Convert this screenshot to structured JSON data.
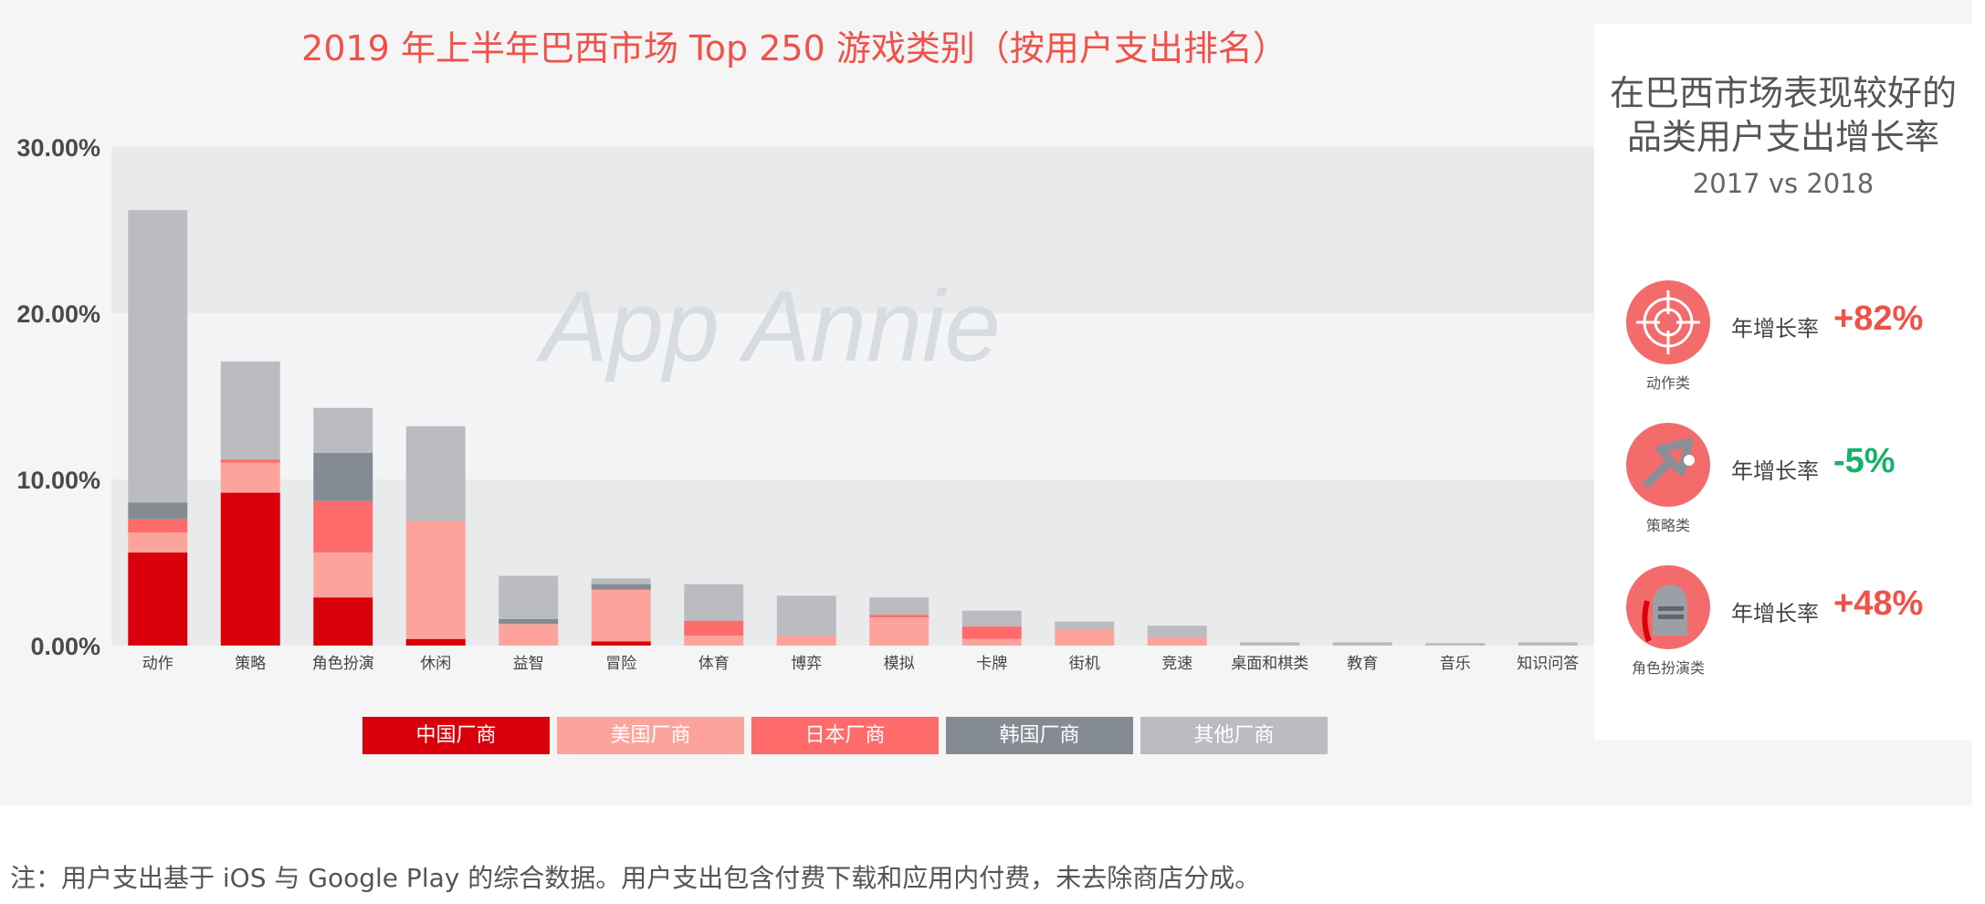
{
  "chart_data": {
    "type": "bar",
    "stacked": true,
    "title": "2019 年上半年巴西市场 Top 250 游戏类别（按用户支出排名）",
    "categories": [
      "动作",
      "策略",
      "角色扮演",
      "休闲",
      "益智",
      "冒险",
      "体育",
      "博弈",
      "模拟",
      "卡牌",
      "街机",
      "竞速",
      "桌面和棋类",
      "教育",
      "音乐",
      "知识问答"
    ],
    "series": [
      {
        "name": "中国厂商",
        "color": "#d9000b",
        "values": [
          5.6,
          9.2,
          2.9,
          0.4,
          0.0,
          0.25,
          0.0,
          0.0,
          0.0,
          0.0,
          0.0,
          0.0,
          0.0,
          0.0,
          0.0,
          0.0
        ]
      },
      {
        "name": "美国厂商",
        "color": "#fca49c",
        "values": [
          1.2,
          1.8,
          2.7,
          7.1,
          1.3,
          3.1,
          0.6,
          0.6,
          1.7,
          0.4,
          1.0,
          0.5,
          0.0,
          0.0,
          0.0,
          0.0
        ]
      },
      {
        "name": "日本厂商",
        "color": "#ff6a6a",
        "values": [
          0.8,
          0.2,
          3.1,
          0.0,
          0.0,
          0.05,
          0.9,
          0.0,
          0.15,
          0.75,
          0.0,
          0.0,
          0.0,
          0.0,
          0.0,
          0.0
        ]
      },
      {
        "name": "韩国厂商",
        "color": "#858b92",
        "values": [
          1.0,
          0.0,
          2.9,
          0.0,
          0.3,
          0.3,
          0.0,
          0.0,
          0.0,
          0.0,
          0.0,
          0.0,
          0.0,
          0.0,
          0.0,
          0.0
        ]
      },
      {
        "name": "其他厂商",
        "color": "#bbbcbf",
        "values": [
          17.6,
          5.9,
          2.7,
          5.7,
          2.6,
          0.35,
          2.2,
          2.4,
          1.05,
          0.95,
          0.45,
          0.7,
          0.2,
          0.2,
          0.15,
          0.2
        ]
      }
    ],
    "yticks": [
      "0.00%",
      "10.00%",
      "20.00%",
      "30.00%"
    ],
    "ylim": [
      0,
      30
    ],
    "legend_position": "bottom",
    "watermark": "App Annie"
  },
  "side_panel": {
    "title_line1": "在巴西市场表现较好的",
    "title_line2": "品类用户支出增长率",
    "subtitle": "2017 vs 2018",
    "stats": [
      {
        "category": "动作类",
        "label": "年增长率",
        "value": "+82%",
        "value_color": "#f0524a",
        "icon": "crosshair-icon"
      },
      {
        "category": "策略类",
        "label": "年增长率",
        "value": "-5%",
        "value_color": "#17b26a",
        "icon": "strategy-arrow-icon"
      },
      {
        "category": "角色扮演类",
        "label": "年增长率",
        "value": "+48%",
        "value_color": "#f0524a",
        "icon": "knight-helmet-icon"
      }
    ]
  },
  "note": "注：用户支出基于 iOS 与 Google Play 的综合数据。用户支出包含付费下载和应用内付费，未去除商店分成。"
}
